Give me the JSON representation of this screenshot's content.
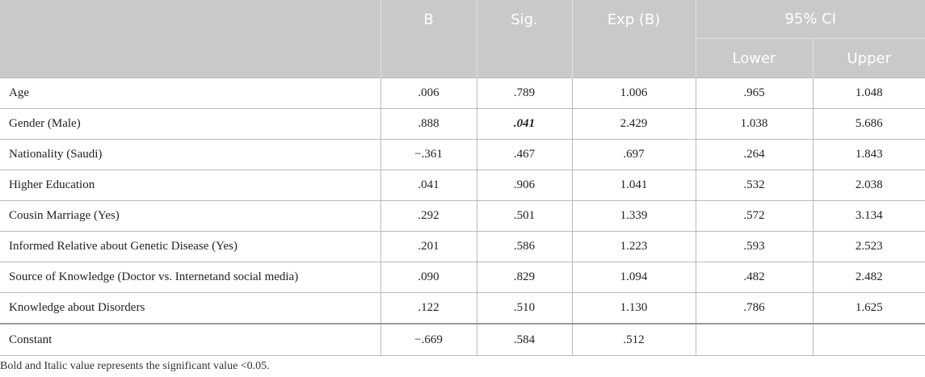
{
  "headers": {
    "b": "B",
    "sig": "Sig.",
    "expb": "Exp (B)",
    "ci": "95% CI",
    "lower": "Lower",
    "upper": "Upper"
  },
  "rows": [
    {
      "label": "Age",
      "b": ".006",
      "sig": ".789",
      "expb": "1.006",
      "lower": ".965",
      "upper": "1.048"
    },
    {
      "label": "Gender (Male)",
      "b": ".888",
      "sig": ".041",
      "expb": "2.429",
      "lower": "1.038",
      "upper": "5.686"
    },
    {
      "label": "Nationality (Saudi)",
      "b": "−.361",
      "sig": ".467",
      "expb": ".697",
      "lower": ".264",
      "upper": "1.843"
    },
    {
      "label": "Higher Education",
      "b": ".041",
      "sig": ".906",
      "expb": "1.041",
      "lower": ".532",
      "upper": "2.038"
    },
    {
      "label": "Cousin Marriage (Yes)",
      "b": ".292",
      "sig": ".501",
      "expb": "1.339",
      "lower": ".572",
      "upper": "3.134"
    },
    {
      "label": "Informed Relative about Genetic Disease (Yes)",
      "b": ".201",
      "sig": ".586",
      "expb": "1.223",
      "lower": ".593",
      "upper": "2.523"
    },
    {
      "label": "Source of Knowledge (Doctor vs. Internetand social media)",
      "b": ".090",
      "sig": ".829",
      "expb": "1.094",
      "lower": ".482",
      "upper": "2.482"
    },
    {
      "label": "Knowledge about Disorders",
      "b": ".122",
      "sig": ".510",
      "expb": "1.130",
      "lower": ".786",
      "upper": "1.625"
    },
    {
      "label": "Constant",
      "b": "−.669",
      "sig": ".584",
      "expb": ".512",
      "lower": "",
      "upper": ""
    }
  ],
  "footnote": "Bold and Italic value represents the significant value <0.05.",
  "colors": {
    "header_bg": "#c9c9c9",
    "header_text": "#ffffff",
    "grid": "#b9b9b9"
  }
}
